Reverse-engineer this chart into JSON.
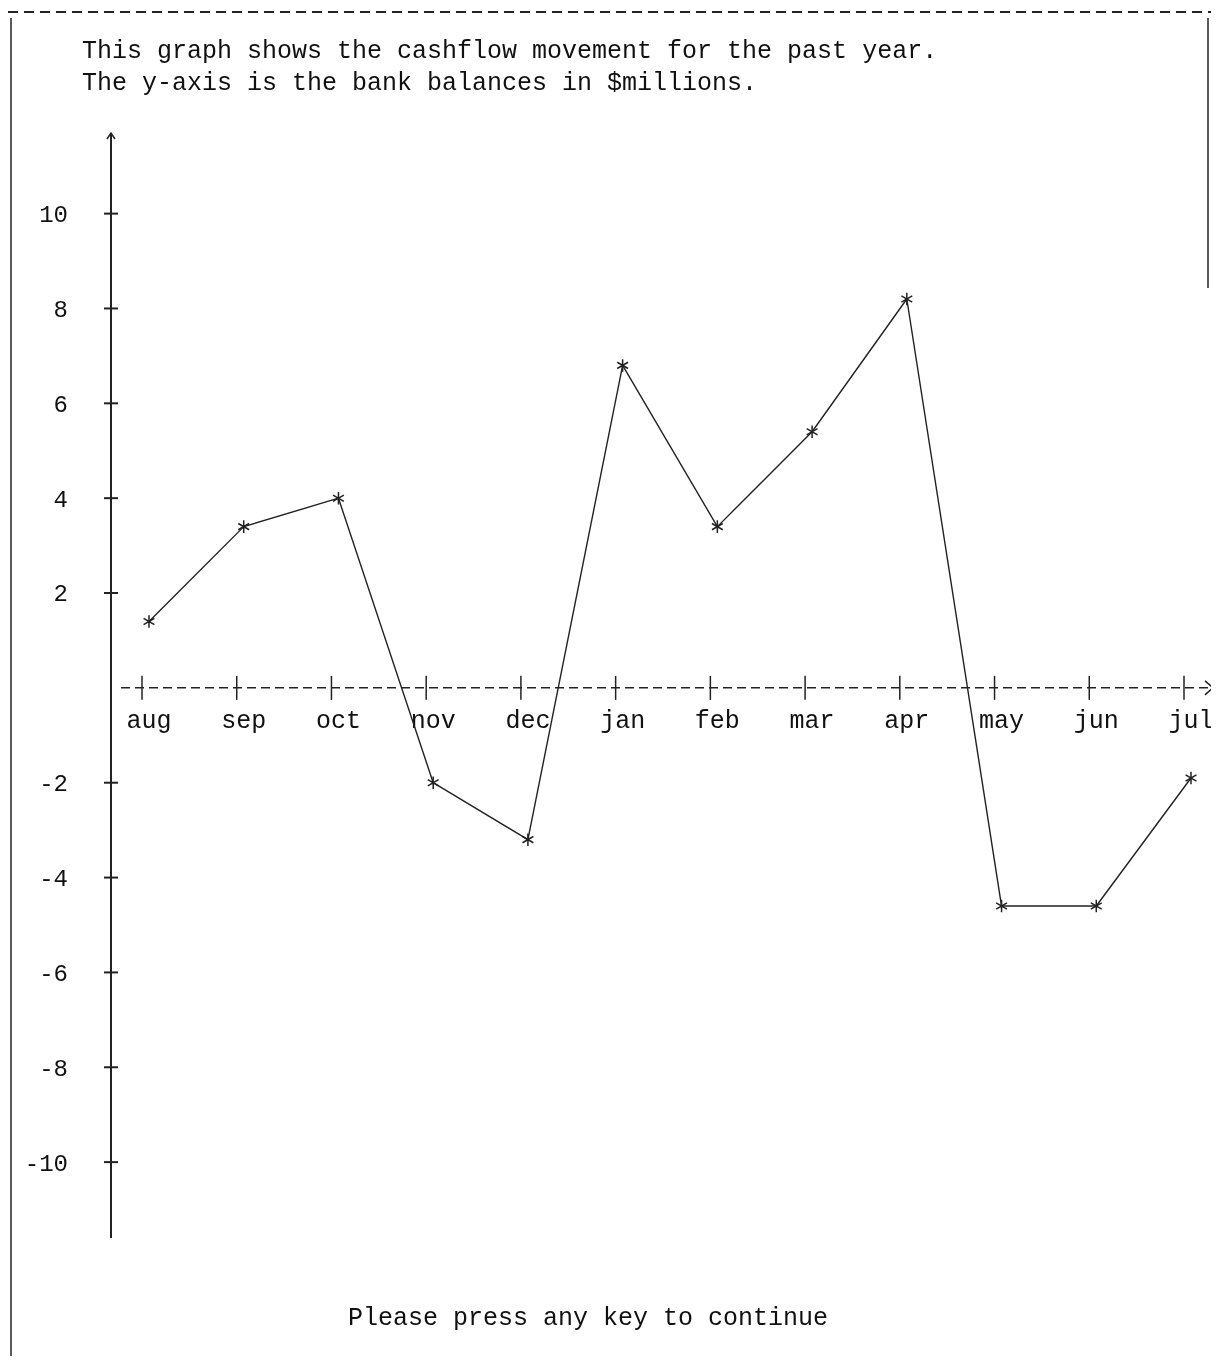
{
  "chart_data": {
    "type": "line",
    "title": "This graph shows the cashflow movement for the past year.",
    "subtitle": "The y-axis is the bank balances in $millions.",
    "categories": [
      "aug",
      "sep",
      "oct",
      "nov",
      "dec",
      "jan",
      "feb",
      "mar",
      "apr",
      "may",
      "jun",
      "jul"
    ],
    "series": [
      {
        "color": "#222222",
        "values": [
          1.4,
          3.4,
          4.0,
          -2.0,
          -3.2,
          6.8,
          3.4,
          5.4,
          8.2,
          -4.6,
          -4.6,
          -1.9
        ]
      }
    ],
    "ylim": [
      -11.6,
      11.7
    ],
    "yticks": [
      -10,
      -8,
      -6,
      -4,
      -2,
      2,
      4,
      6,
      8,
      10
    ],
    "marker": "cross",
    "line_style": "solid",
    "grid": false,
    "ref_lines": [
      {
        "axis": "y",
        "value": 0,
        "line_style": "dashed",
        "color": "#222222"
      }
    ],
    "annotations": [
      "Please press any key to continue"
    ]
  }
}
